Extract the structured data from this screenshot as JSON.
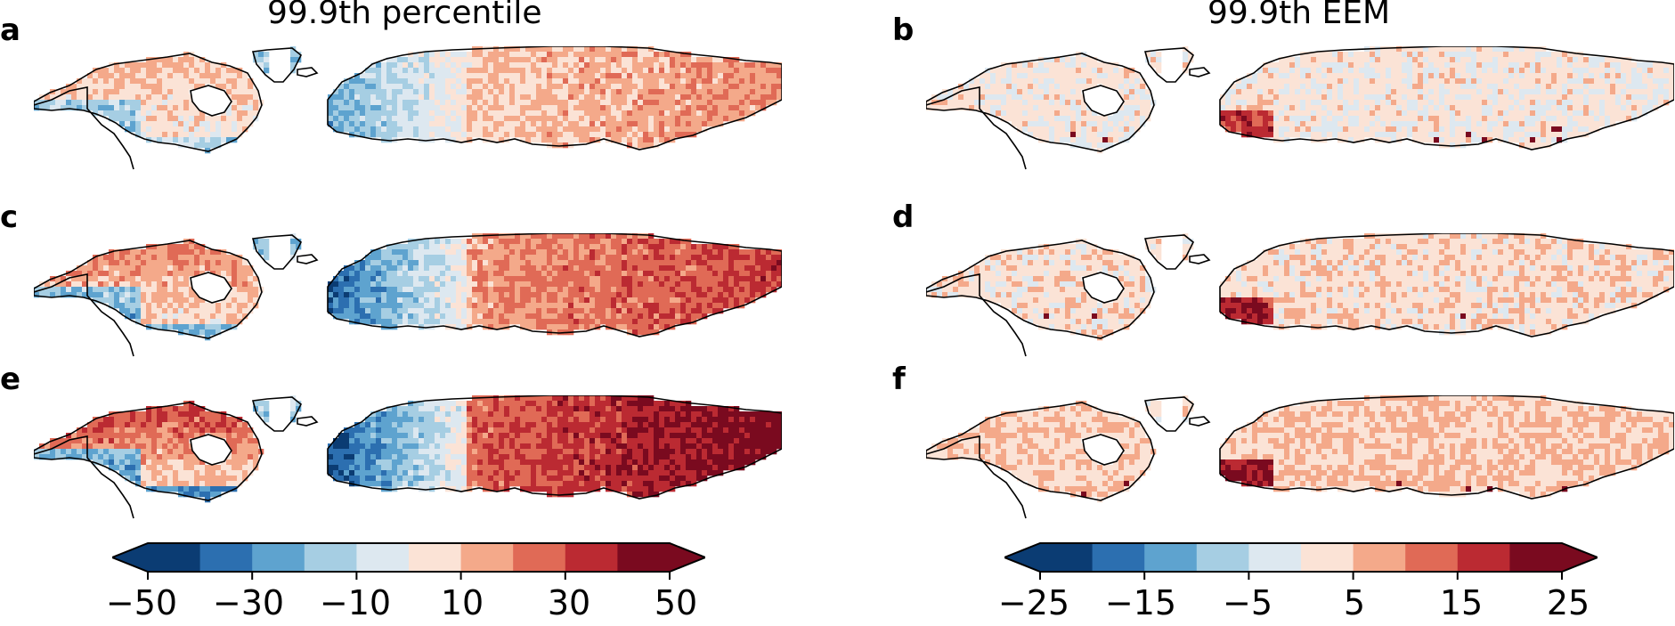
{
  "columns": [
    {
      "title": "99.9th percentile"
    },
    {
      "title": "99.9th EEM"
    }
  ],
  "panels": [
    {
      "label": "a",
      "column": 0,
      "intensity": 0.35,
      "europe_bias": -0.55
    },
    {
      "label": "b",
      "column": 1,
      "intensity": 0.15,
      "europe_bias": 0.7
    },
    {
      "label": "c",
      "column": 0,
      "intensity": 0.6,
      "europe_bias": -0.85
    },
    {
      "label": "d",
      "column": 1,
      "intensity": 0.3,
      "europe_bias": 0.75
    },
    {
      "label": "e",
      "column": 0,
      "intensity": 0.9,
      "europe_bias": -0.95
    },
    {
      "label": "f",
      "column": 1,
      "intensity": 0.5,
      "europe_bias": 0.85
    }
  ],
  "colorbars": [
    {
      "name": "percentile-colorbar",
      "ticks": [
        "−50",
        "−30",
        "−10",
        "10",
        "30",
        "50"
      ],
      "min": -50,
      "max": 50,
      "extend": "both"
    },
    {
      "name": "eem-colorbar",
      "ticks": [
        "−25",
        "−15",
        "−5",
        "5",
        "15",
        "25"
      ],
      "min": -25,
      "max": 25,
      "extend": "both"
    }
  ],
  "palette": [
    "#0b3c73",
    "#2c6fb0",
    "#5ea3cf",
    "#a6cee3",
    "#dde8f0",
    "#fbe3d6",
    "#f4a98a",
    "#e06a56",
    "#bb2a32",
    "#7a0a1f"
  ]
}
